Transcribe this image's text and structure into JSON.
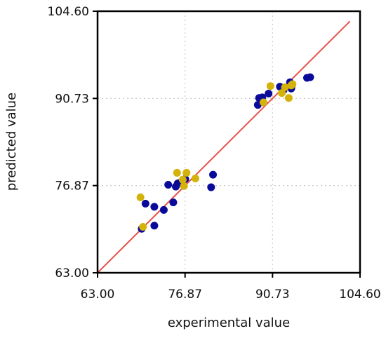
{
  "chart_data": {
    "type": "scatter",
    "title": "",
    "xlabel": "experimental value",
    "ylabel": "predicted value",
    "xlim": [
      63.0,
      104.6
    ],
    "ylim": [
      63.0,
      104.6
    ],
    "xticks": [
      63.0,
      76.87,
      90.73,
      104.6
    ],
    "yticks": [
      63.0,
      76.87,
      90.73,
      104.6
    ],
    "xtick_labels": [
      "63.00",
      "76.87",
      "90.73",
      "104.60"
    ],
    "ytick_labels": [
      "63.00",
      "76.87",
      "90.73",
      "104.60"
    ],
    "grid": true,
    "reference_line": {
      "from": [
        63.0,
        63.0
      ],
      "to": [
        103.0,
        103.0
      ],
      "color": "#e8514a"
    },
    "series": [
      {
        "color": "#0a0a9a",
        "points": [
          [
            70.0,
            70.0
          ],
          [
            70.6,
            74.0
          ],
          [
            72.0,
            70.5
          ],
          [
            72.0,
            73.5
          ],
          [
            73.5,
            73.0
          ],
          [
            74.2,
            77.0
          ],
          [
            75.0,
            74.2
          ],
          [
            75.4,
            76.7
          ],
          [
            75.7,
            77.2
          ],
          [
            76.0,
            77.3
          ],
          [
            76.5,
            77.5
          ],
          [
            76.9,
            77.9
          ],
          [
            81.0,
            76.6
          ],
          [
            81.3,
            78.6
          ],
          [
            88.4,
            89.7
          ],
          [
            88.6,
            90.8
          ],
          [
            89.1,
            90.9
          ],
          [
            90.1,
            91.5
          ],
          [
            91.9,
            92.6
          ],
          [
            92.5,
            92.1
          ],
          [
            93.5,
            93.3
          ],
          [
            93.7,
            92.3
          ],
          [
            93.8,
            92.8
          ],
          [
            96.2,
            94.0
          ],
          [
            96.7,
            94.1
          ]
        ]
      },
      {
        "color": "#d4b20a",
        "points": [
          [
            69.8,
            75.0
          ],
          [
            70.2,
            70.3
          ],
          [
            75.6,
            78.9
          ],
          [
            76.5,
            77.8
          ],
          [
            76.7,
            76.8
          ],
          [
            77.1,
            78.9
          ],
          [
            78.5,
            78.0
          ],
          [
            89.3,
            90.1
          ],
          [
            90.4,
            92.7
          ],
          [
            92.2,
            91.6
          ],
          [
            92.7,
            92.5
          ],
          [
            93.3,
            90.8
          ],
          [
            93.7,
            92.8
          ],
          [
            93.9,
            93.0
          ]
        ]
      }
    ]
  }
}
